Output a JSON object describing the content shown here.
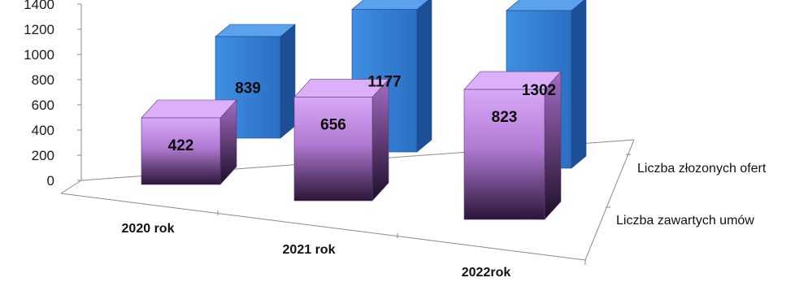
{
  "chart_data": {
    "type": "bar",
    "style": "3d-column",
    "categories": [
      "2020 rok",
      "2021 rok",
      "2022rok"
    ],
    "series": [
      {
        "name": "Liczba złozonych ofert",
        "values": [
          839,
          1177,
          1302
        ],
        "color": "#2f7ad1"
      },
      {
        "name": "Liczba zawartych umów",
        "values": [
          422,
          656,
          823
        ],
        "color": "#c98de8"
      }
    ],
    "y_ticks": [
      "0",
      "200",
      "400",
      "600",
      "800",
      "1000",
      "1200",
      "1400"
    ],
    "ylim": [
      0,
      1400
    ],
    "data_labels": true,
    "grid": false,
    "legend": "none"
  }
}
